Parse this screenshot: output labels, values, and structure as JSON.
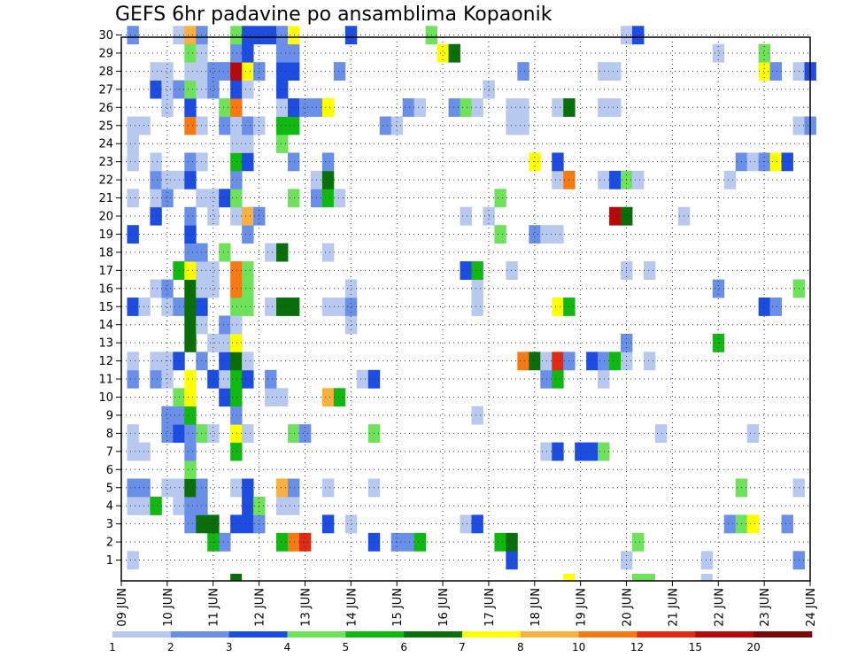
{
  "chart_data": {
    "type": "heatmap",
    "title": "GEFS 6hr padavine po ansamblima Kopaonik",
    "xlabel": "",
    "ylabel": "",
    "x_tick_labels": [
      "09 JUN",
      "10 JUN",
      "11 JUN",
      "12 JUN",
      "13 JUN",
      "14 JUN",
      "15 JUN",
      "16 JUN",
      "17 JUN",
      "18 JUN",
      "19 JUN",
      "20 JUN",
      "21 JUN",
      "22 JUN",
      "23 JUN",
      "24 JUN"
    ],
    "y_tick_labels": [
      "1",
      "2",
      "3",
      "4",
      "5",
      "6",
      "7",
      "8",
      "9",
      "10",
      "11",
      "12",
      "13",
      "14",
      "15",
      "16",
      "17",
      "18",
      "19",
      "20",
      "21",
      "22",
      "23",
      "24",
      "25",
      "26",
      "27",
      "28",
      "29",
      "30"
    ],
    "xlim": [
      0,
      60
    ],
    "ylim": [
      0,
      30
    ],
    "grid": true,
    "colorbar": {
      "labels": [
        "1",
        "2",
        "3",
        "4",
        "5",
        "6",
        "7",
        "8",
        "10",
        "12",
        "15",
        "20"
      ],
      "colors": [
        "#b8c9f0",
        "#6a8fe8",
        "#1c4de0",
        "#6ee25a",
        "#12b812",
        "#0a6e0a",
        "#ffff00",
        "#f8b040",
        "#f57a14",
        "#e02a14",
        "#b40a0a",
        "#7a0a0a"
      ]
    },
    "cells": [
      [
        1,
        1,
        1
      ],
      [
        34,
        1,
        3
      ],
      [
        44,
        1,
        1
      ],
      [
        51,
        1,
        1
      ],
      [
        59,
        1,
        2
      ],
      [
        9,
        2,
        2
      ],
      [
        8,
        2,
        5
      ],
      [
        14,
        2,
        5
      ],
      [
        15,
        2,
        9
      ],
      [
        16,
        2,
        10
      ],
      [
        22,
        2,
        3
      ],
      [
        24,
        2,
        2
      ],
      [
        25,
        2,
        2
      ],
      [
        26,
        2,
        5
      ],
      [
        33,
        2,
        5
      ],
      [
        34,
        2,
        6
      ],
      [
        45,
        2,
        4
      ],
      [
        6,
        3,
        2
      ],
      [
        7,
        3,
        6
      ],
      [
        8,
        3,
        6
      ],
      [
        10,
        3,
        3
      ],
      [
        11,
        3,
        3
      ],
      [
        12,
        3,
        2
      ],
      [
        18,
        3,
        3
      ],
      [
        20,
        3,
        1
      ],
      [
        30,
        3,
        1
      ],
      [
        31,
        3,
        3
      ],
      [
        53,
        3,
        2
      ],
      [
        54,
        3,
        4
      ],
      [
        55,
        3,
        7
      ],
      [
        58,
        3,
        2
      ],
      [
        1,
        4,
        1
      ],
      [
        2,
        4,
        1
      ],
      [
        3,
        4,
        5
      ],
      [
        5,
        4,
        1
      ],
      [
        6,
        4,
        2
      ],
      [
        7,
        4,
        2
      ],
      [
        11,
        4,
        3
      ],
      [
        12,
        4,
        4
      ],
      [
        14,
        4,
        1
      ],
      [
        15,
        4,
        1
      ],
      [
        1,
        5,
        2
      ],
      [
        2,
        5,
        2
      ],
      [
        4,
        5,
        1
      ],
      [
        5,
        5,
        1
      ],
      [
        6,
        5,
        6
      ],
      [
        7,
        5,
        2
      ],
      [
        10,
        5,
        1
      ],
      [
        11,
        5,
        3
      ],
      [
        14,
        5,
        8
      ],
      [
        15,
        5,
        2
      ],
      [
        18,
        5,
        1
      ],
      [
        22,
        5,
        1
      ],
      [
        54,
        5,
        4
      ],
      [
        59,
        5,
        1
      ],
      [
        6,
        6,
        4
      ],
      [
        1,
        7,
        1
      ],
      [
        2,
        7,
        1
      ],
      [
        6,
        7,
        2
      ],
      [
        10,
        7,
        5
      ],
      [
        37,
        7,
        1
      ],
      [
        38,
        7,
        3
      ],
      [
        40,
        7,
        3
      ],
      [
        41,
        7,
        3
      ],
      [
        42,
        7,
        4
      ],
      [
        1,
        8,
        1
      ],
      [
        4,
        8,
        2
      ],
      [
        5,
        8,
        3
      ],
      [
        6,
        8,
        2
      ],
      [
        7,
        8,
        4
      ],
      [
        8,
        8,
        1
      ],
      [
        10,
        8,
        7
      ],
      [
        11,
        8,
        1
      ],
      [
        15,
        8,
        4
      ],
      [
        16,
        8,
        2
      ],
      [
        22,
        8,
        4
      ],
      [
        47,
        8,
        1
      ],
      [
        55,
        8,
        1
      ],
      [
        4,
        9,
        2
      ],
      [
        5,
        9,
        2
      ],
      [
        6,
        9,
        5
      ],
      [
        10,
        9,
        2
      ],
      [
        31,
        9,
        1
      ],
      [
        5,
        10,
        4
      ],
      [
        6,
        10,
        7
      ],
      [
        9,
        10,
        3
      ],
      [
        10,
        10,
        5
      ],
      [
        13,
        10,
        1
      ],
      [
        14,
        10,
        1
      ],
      [
        18,
        10,
        8
      ],
      [
        19,
        10,
        5
      ],
      [
        1,
        11,
        2
      ],
      [
        3,
        11,
        2
      ],
      [
        4,
        11,
        1
      ],
      [
        6,
        11,
        7
      ],
      [
        8,
        11,
        3
      ],
      [
        9,
        11,
        1
      ],
      [
        10,
        11,
        5
      ],
      [
        11,
        11,
        3
      ],
      [
        13,
        11,
        2
      ],
      [
        21,
        11,
        1
      ],
      [
        22,
        11,
        3
      ],
      [
        37,
        11,
        2
      ],
      [
        38,
        11,
        5
      ],
      [
        42,
        11,
        1
      ],
      [
        1,
        12,
        1
      ],
      [
        3,
        12,
        1
      ],
      [
        4,
        12,
        1
      ],
      [
        5,
        12,
        3
      ],
      [
        7,
        12,
        2
      ],
      [
        9,
        12,
        3
      ],
      [
        10,
        12,
        6
      ],
      [
        11,
        12,
        1
      ],
      [
        35,
        12,
        9
      ],
      [
        36,
        12,
        6
      ],
      [
        37,
        12,
        1
      ],
      [
        38,
        12,
        10
      ],
      [
        39,
        12,
        2
      ],
      [
        41,
        12,
        3
      ],
      [
        42,
        12,
        2
      ],
      [
        43,
        12,
        5
      ],
      [
        44,
        12,
        1
      ],
      [
        46,
        12,
        1
      ],
      [
        6,
        13,
        6
      ],
      [
        8,
        13,
        1
      ],
      [
        9,
        13,
        1
      ],
      [
        10,
        13,
        7
      ],
      [
        44,
        13,
        2
      ],
      [
        52,
        13,
        5
      ],
      [
        6,
        14,
        6
      ],
      [
        7,
        14,
        1
      ],
      [
        9,
        14,
        2
      ],
      [
        10,
        14,
        1
      ],
      [
        20,
        14,
        1
      ],
      [
        1,
        15,
        3
      ],
      [
        2,
        15,
        1
      ],
      [
        4,
        15,
        1
      ],
      [
        5,
        15,
        2
      ],
      [
        6,
        15,
        6
      ],
      [
        7,
        15,
        3
      ],
      [
        10,
        15,
        4
      ],
      [
        11,
        15,
        4
      ],
      [
        13,
        15,
        1
      ],
      [
        14,
        15,
        6
      ],
      [
        15,
        15,
        6
      ],
      [
        18,
        15,
        1
      ],
      [
        19,
        15,
        1
      ],
      [
        20,
        15,
        2
      ],
      [
        31,
        15,
        1
      ],
      [
        38,
        15,
        7
      ],
      [
        39,
        15,
        5
      ],
      [
        56,
        15,
        3
      ],
      [
        57,
        15,
        2
      ],
      [
        3,
        16,
        1
      ],
      [
        4,
        16,
        2
      ],
      [
        6,
        16,
        6
      ],
      [
        7,
        16,
        1
      ],
      [
        8,
        16,
        1
      ],
      [
        10,
        16,
        9
      ],
      [
        11,
        16,
        4
      ],
      [
        20,
        16,
        1
      ],
      [
        31,
        16,
        1
      ],
      [
        52,
        16,
        2
      ],
      [
        59,
        16,
        4
      ],
      [
        5,
        17,
        5
      ],
      [
        6,
        17,
        7
      ],
      [
        7,
        17,
        1
      ],
      [
        8,
        17,
        1
      ],
      [
        10,
        17,
        9
      ],
      [
        11,
        17,
        4
      ],
      [
        30,
        17,
        3
      ],
      [
        31,
        17,
        5
      ],
      [
        34,
        17,
        1
      ],
      [
        44,
        17,
        1
      ],
      [
        46,
        17,
        1
      ],
      [
        6,
        18,
        2
      ],
      [
        7,
        18,
        2
      ],
      [
        9,
        18,
        4
      ],
      [
        13,
        18,
        1
      ],
      [
        14,
        18,
        6
      ],
      [
        18,
        18,
        1
      ],
      [
        1,
        19,
        3
      ],
      [
        6,
        19,
        3
      ],
      [
        11,
        19,
        2
      ],
      [
        33,
        19,
        4
      ],
      [
        36,
        19,
        2
      ],
      [
        37,
        19,
        1
      ],
      [
        38,
        19,
        1
      ],
      [
        3,
        20,
        3
      ],
      [
        6,
        20,
        2
      ],
      [
        8,
        20,
        1
      ],
      [
        10,
        20,
        1
      ],
      [
        11,
        20,
        8
      ],
      [
        12,
        20,
        2
      ],
      [
        30,
        20,
        1
      ],
      [
        32,
        20,
        1
      ],
      [
        43,
        20,
        11
      ],
      [
        44,
        20,
        6
      ],
      [
        49,
        20,
        1
      ],
      [
        1,
        21,
        1
      ],
      [
        3,
        21,
        1
      ],
      [
        4,
        21,
        2
      ],
      [
        7,
        21,
        1
      ],
      [
        8,
        21,
        1
      ],
      [
        9,
        21,
        3
      ],
      [
        10,
        21,
        4
      ],
      [
        15,
        21,
        4
      ],
      [
        17,
        21,
        2
      ],
      [
        18,
        21,
        5
      ],
      [
        19,
        21,
        1
      ],
      [
        33,
        21,
        4
      ],
      [
        3,
        22,
        2
      ],
      [
        4,
        22,
        1
      ],
      [
        5,
        22,
        1
      ],
      [
        6,
        22,
        3
      ],
      [
        10,
        22,
        2
      ],
      [
        17,
        22,
        1
      ],
      [
        18,
        22,
        6
      ],
      [
        38,
        22,
        1
      ],
      [
        39,
        22,
        9
      ],
      [
        42,
        22,
        1
      ],
      [
        43,
        22,
        3
      ],
      [
        44,
        22,
        4
      ],
      [
        45,
        22,
        1
      ],
      [
        53,
        22,
        1
      ],
      [
        1,
        23,
        1
      ],
      [
        3,
        23,
        1
      ],
      [
        6,
        23,
        2
      ],
      [
        7,
        23,
        1
      ],
      [
        10,
        23,
        5
      ],
      [
        11,
        23,
        3
      ],
      [
        15,
        23,
        2
      ],
      [
        18,
        23,
        2
      ],
      [
        36,
        23,
        7
      ],
      [
        38,
        23,
        3
      ],
      [
        54,
        23,
        2
      ],
      [
        55,
        23,
        1
      ],
      [
        56,
        23,
        2
      ],
      [
        57,
        23,
        7
      ],
      [
        58,
        23,
        3
      ],
      [
        1,
        24,
        1
      ],
      [
        10,
        24,
        1
      ],
      [
        11,
        24,
        1
      ],
      [
        14,
        24,
        4
      ],
      [
        1,
        25,
        1
      ],
      [
        2,
        25,
        1
      ],
      [
        6,
        25,
        9
      ],
      [
        7,
        25,
        1
      ],
      [
        9,
        25,
        2
      ],
      [
        10,
        25,
        1
      ],
      [
        11,
        25,
        2
      ],
      [
        12,
        25,
        1
      ],
      [
        14,
        25,
        5
      ],
      [
        15,
        25,
        5
      ],
      [
        23,
        25,
        2
      ],
      [
        24,
        25,
        1
      ],
      [
        34,
        25,
        1
      ],
      [
        35,
        25,
        1
      ],
      [
        59,
        25,
        1
      ],
      [
        60,
        25,
        2
      ],
      [
        4,
        26,
        1
      ],
      [
        6,
        26,
        3
      ],
      [
        9,
        26,
        4
      ],
      [
        10,
        26,
        9
      ],
      [
        14,
        26,
        1
      ],
      [
        15,
        26,
        3
      ],
      [
        16,
        26,
        2
      ],
      [
        17,
        26,
        2
      ],
      [
        18,
        26,
        7
      ],
      [
        25,
        26,
        2
      ],
      [
        26,
        26,
        1
      ],
      [
        29,
        26,
        2
      ],
      [
        30,
        26,
        4
      ],
      [
        31,
        26,
        1
      ],
      [
        34,
        26,
        1
      ],
      [
        35,
        26,
        1
      ],
      [
        38,
        26,
        1
      ],
      [
        39,
        26,
        6
      ],
      [
        42,
        26,
        1
      ],
      [
        43,
        26,
        1
      ],
      [
        3,
        27,
        3
      ],
      [
        4,
        27,
        1
      ],
      [
        5,
        27,
        2
      ],
      [
        6,
        27,
        4
      ],
      [
        7,
        27,
        1
      ],
      [
        8,
        27,
        2
      ],
      [
        10,
        27,
        3
      ],
      [
        11,
        27,
        1
      ],
      [
        14,
        27,
        3
      ],
      [
        32,
        27,
        1
      ],
      [
        3,
        28,
        1
      ],
      [
        4,
        28,
        1
      ],
      [
        6,
        28,
        1
      ],
      [
        7,
        28,
        1
      ],
      [
        8,
        28,
        2
      ],
      [
        9,
        28,
        2
      ],
      [
        10,
        28,
        11
      ],
      [
        11,
        28,
        7
      ],
      [
        12,
        28,
        2
      ],
      [
        14,
        28,
        3
      ],
      [
        15,
        28,
        3
      ],
      [
        19,
        28,
        2
      ],
      [
        35,
        28,
        2
      ],
      [
        42,
        28,
        1
      ],
      [
        43,
        28,
        1
      ],
      [
        56,
        28,
        7
      ],
      [
        57,
        28,
        2
      ],
      [
        59,
        28,
        1
      ],
      [
        60,
        28,
        3
      ],
      [
        6,
        29,
        4
      ],
      [
        7,
        29,
        1
      ],
      [
        10,
        29,
        2
      ],
      [
        11,
        29,
        3
      ],
      [
        14,
        29,
        2
      ],
      [
        15,
        29,
        2
      ],
      [
        28,
        29,
        7
      ],
      [
        29,
        29,
        6
      ],
      [
        52,
        29,
        1
      ],
      [
        56,
        29,
        4
      ],
      [
        1,
        30,
        2
      ],
      [
        5,
        30,
        1
      ],
      [
        6,
        30,
        8
      ],
      [
        7,
        30,
        2
      ],
      [
        10,
        30,
        4
      ],
      [
        11,
        30,
        3
      ],
      [
        12,
        30,
        3
      ],
      [
        13,
        30,
        3
      ],
      [
        14,
        30,
        2
      ],
      [
        15,
        30,
        7
      ],
      [
        20,
        30,
        3
      ],
      [
        27,
        30,
        4
      ],
      [
        44,
        30,
        1
      ],
      [
        45,
        30,
        3
      ]
    ],
    "edge_marks": [
      {
        "x": 10,
        "color_index": 6
      },
      {
        "x": 39,
        "color_index": 7
      },
      {
        "x": 45,
        "color_index": 4
      },
      {
        "x": 46,
        "color_index": 4
      },
      {
        "x": 51,
        "color_index": 1
      }
    ]
  }
}
